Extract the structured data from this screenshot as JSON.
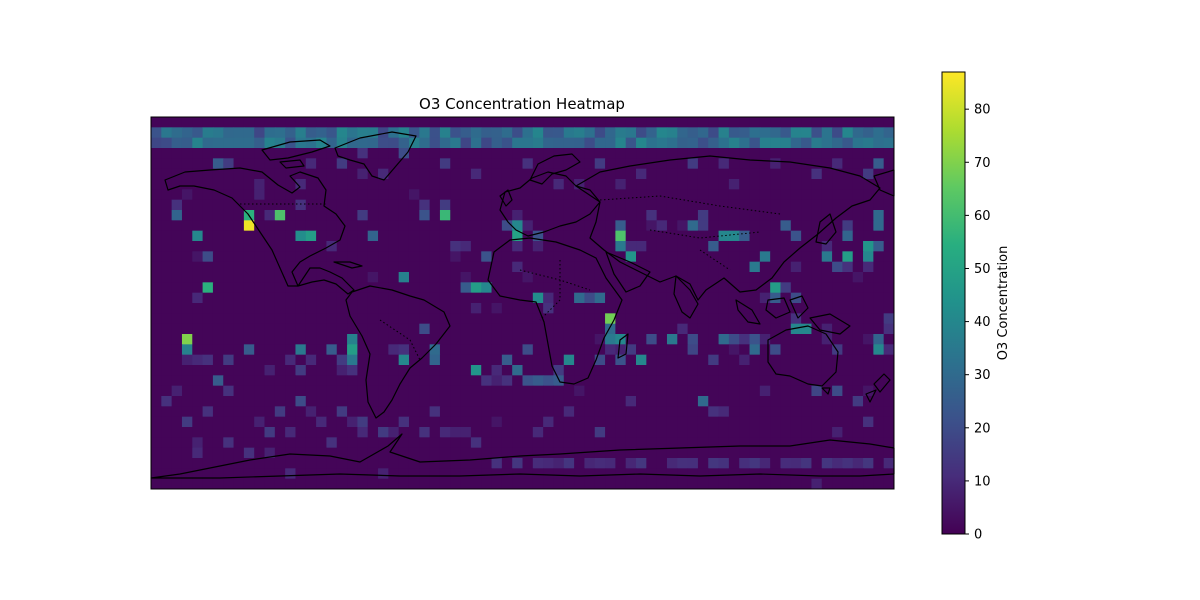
{
  "chart_data": {
    "type": "heatmap",
    "title": "O3 Concentration Heatmap",
    "colorbar": {
      "label": "O3 Concentration",
      "range": [
        0,
        87
      ],
      "ticks": [
        0,
        10,
        20,
        30,
        40,
        50,
        60,
        70,
        80
      ],
      "colormap": "viridis"
    },
    "map": {
      "projection": "plate-carree",
      "lon_range": [
        -180,
        180
      ],
      "lat_range": [
        -90,
        90
      ],
      "grid_resolution_deg": 5,
      "coastlines": true,
      "borders": "dotted"
    },
    "x": {
      "name": "longitude",
      "start": -180,
      "step": 5,
      "count": 72
    },
    "y": {
      "name": "latitude",
      "start": 90,
      "step": -5,
      "count": 36
    },
    "background_value": 1,
    "arctic_band": {
      "lat": [
        80,
        85
      ],
      "value_range": [
        18,
        40
      ]
    },
    "southern_band": {
      "lat": -75,
      "lon_range": [
        -15,
        165
      ],
      "value_range": [
        8,
        14
      ]
    },
    "cells": [
      [
        -170,
        50,
        12
      ],
      [
        -170,
        45,
        28
      ],
      [
        -165,
        55,
        5
      ],
      [
        -160,
        35,
        40
      ],
      [
        -160,
        25,
        5
      ],
      [
        -155,
        25,
        20
      ],
      [
        -155,
        10,
        55
      ],
      [
        -160,
        5,
        10
      ],
      [
        -135,
        45,
        55
      ],
      [
        -135,
        40,
        85
      ],
      [
        -130,
        55,
        8
      ],
      [
        -125,
        45,
        10
      ],
      [
        -120,
        45,
        62
      ],
      [
        -110,
        50,
        12
      ],
      [
        -110,
        35,
        42
      ],
      [
        -105,
        35,
        48
      ],
      [
        -95,
        30,
        10
      ],
      [
        -80,
        45,
        15
      ],
      [
        -75,
        35,
        28
      ],
      [
        -75,
        15,
        5
      ],
      [
        -60,
        15,
        38
      ],
      [
        -55,
        55,
        5
      ],
      [
        -50,
        50,
        12
      ],
      [
        -50,
        45,
        22
      ],
      [
        -40,
        45,
        58
      ],
      [
        -40,
        50,
        15
      ],
      [
        -35,
        30,
        12
      ],
      [
        -35,
        25,
        5
      ],
      [
        -30,
        30,
        10
      ],
      [
        -30,
        15,
        5
      ],
      [
        -30,
        10,
        25
      ],
      [
        -25,
        10,
        48
      ],
      [
        -25,
        0,
        8
      ],
      [
        -20,
        25,
        22
      ],
      [
        -20,
        10,
        40
      ],
      [
        -15,
        0,
        5
      ],
      [
        -10,
        40,
        20
      ],
      [
        -5,
        45,
        8
      ],
      [
        -5,
        40,
        40
      ],
      [
        -5,
        35,
        50
      ],
      [
        -5,
        30,
        10
      ],
      [
        0,
        40,
        8
      ],
      [
        0,
        15,
        5
      ],
      [
        5,
        30,
        8
      ],
      [
        5,
        35,
        22
      ],
      [
        5,
        5,
        42
      ],
      [
        10,
        0,
        12
      ],
      [
        10,
        5,
        10
      ],
      [
        -5,
        20,
        10
      ],
      [
        25,
        5,
        30
      ],
      [
        30,
        5,
        20
      ],
      [
        35,
        5,
        30
      ],
      [
        40,
        -5,
        68
      ],
      [
        45,
        40,
        25
      ],
      [
        45,
        35,
        62
      ],
      [
        45,
        30,
        35
      ],
      [
        50,
        30,
        10
      ],
      [
        50,
        25,
        45
      ],
      [
        55,
        30,
        10
      ],
      [
        60,
        40,
        5
      ],
      [
        60,
        45,
        12
      ],
      [
        65,
        40,
        10
      ],
      [
        75,
        40,
        5
      ],
      [
        80,
        40,
        30
      ],
      [
        85,
        45,
        15
      ],
      [
        85,
        40,
        15
      ],
      [
        90,
        30,
        25
      ],
      [
        95,
        35,
        40
      ],
      [
        100,
        35,
        40
      ],
      [
        105,
        35,
        25
      ],
      [
        110,
        20,
        35
      ],
      [
        115,
        25,
        35
      ],
      [
        120,
        10,
        48
      ],
      [
        125,
        40,
        25
      ],
      [
        130,
        35,
        22
      ],
      [
        145,
        30,
        10
      ],
      [
        145,
        25,
        35
      ],
      [
        150,
        20,
        20
      ],
      [
        155,
        40,
        15
      ],
      [
        155,
        35,
        28
      ],
      [
        155,
        25,
        48
      ],
      [
        155,
        20,
        12
      ],
      [
        160,
        15,
        5
      ],
      [
        170,
        45,
        30
      ],
      [
        170,
        40,
        30
      ],
      [
        170,
        30,
        25
      ],
      [
        165,
        30,
        45
      ],
      [
        165,
        25,
        40
      ],
      [
        165,
        20,
        10
      ],
      [
        130,
        20,
        8
      ],
      [
        125,
        10,
        15
      ],
      [
        115,
        5,
        8
      ],
      [
        120,
        5,
        25
      ],
      [
        130,
        5,
        20
      ],
      [
        130,
        -5,
        12
      ],
      [
        130,
        -10,
        40
      ],
      [
        145,
        -15,
        8
      ],
      [
        150,
        -20,
        15
      ],
      [
        165,
        -15,
        5
      ],
      [
        170,
        -15,
        28
      ],
      [
        170,
        -20,
        40
      ],
      [
        175,
        -10,
        12
      ],
      [
        175,
        -5,
        15
      ],
      [
        175,
        -20,
        10
      ],
      [
        -165,
        -20,
        38
      ],
      [
        -165,
        -15,
        70
      ],
      [
        -160,
        -25,
        10
      ],
      [
        -165,
        -25,
        8
      ],
      [
        -145,
        -25,
        15
      ],
      [
        -135,
        -20,
        25
      ],
      [
        -145,
        -40,
        12
      ],
      [
        -125,
        -30,
        8
      ],
      [
        -115,
        -25,
        10
      ],
      [
        -110,
        -20,
        35
      ],
      [
        -110,
        -30,
        15
      ],
      [
        -105,
        -25,
        10
      ],
      [
        -95,
        -20,
        25
      ],
      [
        -90,
        -25,
        15
      ],
      [
        -90,
        -30,
        8
      ],
      [
        -85,
        -20,
        48
      ],
      [
        -85,
        -15,
        38
      ],
      [
        -85,
        -25,
        35
      ],
      [
        -85,
        -30,
        12
      ],
      [
        -65,
        -20,
        10
      ],
      [
        -60,
        -20,
        12
      ],
      [
        -60,
        -25,
        40
      ],
      [
        -50,
        -10,
        20
      ],
      [
        -45,
        -20,
        30
      ],
      [
        -45,
        -25,
        28
      ],
      [
        -25,
        -30,
        45
      ],
      [
        -20,
        -35,
        12
      ],
      [
        -15,
        -30,
        10
      ],
      [
        -15,
        -35,
        8
      ],
      [
        -10,
        -25,
        25
      ],
      [
        -10,
        -35,
        12
      ],
      [
        -5,
        -30,
        30
      ],
      [
        0,
        -20,
        20
      ],
      [
        0,
        -35,
        22
      ],
      [
        5,
        -35,
        25
      ],
      [
        10,
        -35,
        22
      ],
      [
        15,
        -35,
        25
      ],
      [
        15,
        -30,
        15
      ],
      [
        20,
        -25,
        40
      ],
      [
        35,
        -25,
        20
      ],
      [
        40,
        -15,
        35
      ],
      [
        40,
        -10,
        30
      ],
      [
        35,
        -15,
        5
      ],
      [
        40,
        -20,
        10
      ],
      [
        45,
        -15,
        40
      ],
      [
        45,
        -20,
        8
      ],
      [
        45,
        -25,
        22
      ],
      [
        50,
        -20,
        15
      ],
      [
        55,
        -25,
        40
      ],
      [
        60,
        -15,
        20
      ],
      [
        70,
        -15,
        35
      ],
      [
        75,
        -10,
        10
      ],
      [
        80,
        -15,
        20
      ],
      [
        80,
        -20,
        18
      ],
      [
        90,
        -25,
        15
      ],
      [
        95,
        -15,
        30
      ],
      [
        100,
        -15,
        20
      ],
      [
        105,
        -15,
        12
      ],
      [
        100,
        -20,
        5
      ],
      [
        105,
        -25,
        8
      ],
      [
        110,
        -20,
        30
      ],
      [
        110,
        -15,
        22
      ],
      [
        115,
        -15,
        8
      ],
      [
        120,
        -20,
        20
      ],
      [
        135,
        -10,
        40
      ],
      [
        145,
        -10,
        8
      ],
      [
        -175,
        -45,
        12
      ],
      [
        -170,
        -40,
        8
      ],
      [
        -155,
        -25,
        12
      ],
      [
        -155,
        -50,
        12
      ],
      [
        -150,
        -35,
        25
      ],
      [
        -130,
        -55,
        8
      ],
      [
        -120,
        -50,
        15
      ],
      [
        -110,
        -45,
        20
      ],
      [
        -85,
        -55,
        8
      ],
      [
        -90,
        -50,
        15
      ],
      [
        -45,
        -50,
        12
      ],
      [
        -30,
        -60,
        8
      ],
      [
        -25,
        -65,
        12
      ],
      [
        -15,
        -55,
        5
      ],
      [
        5,
        -60,
        10
      ],
      [
        10,
        -55,
        10
      ],
      [
        25,
        -40,
        5
      ],
      [
        50,
        -45,
        10
      ],
      [
        85,
        -45,
        30
      ],
      [
        95,
        -50,
        10
      ],
      [
        115,
        -40,
        8
      ],
      [
        140,
        -40,
        18
      ],
      [
        150,
        -40,
        20
      ],
      [
        160,
        -45,
        15
      ],
      [
        165,
        -40,
        5
      ],
      [
        -165,
        -55,
        15
      ],
      [
        -160,
        -65,
        8
      ],
      [
        -145,
        -65,
        12
      ],
      [
        -125,
        -60,
        15
      ],
      [
        -115,
        -60,
        10
      ],
      [
        -95,
        -65,
        12
      ],
      [
        -80,
        -60,
        10
      ],
      [
        -70,
        -60,
        15
      ],
      [
        -65,
        -60,
        8
      ],
      [
        -100,
        -55,
        10
      ],
      [
        -105,
        -50,
        8
      ],
      [
        -80,
        -55,
        15
      ],
      [
        -60,
        -55,
        12
      ],
      [
        -50,
        -60,
        12
      ],
      [
        -40,
        -60,
        10
      ],
      [
        -35,
        -60,
        8
      ],
      [
        20,
        -50,
        10
      ],
      [
        35,
        -60,
        15
      ],
      [
        90,
        -50,
        12
      ],
      [
        150,
        -60,
        8
      ],
      [
        165,
        -55,
        12
      ],
      [
        -135,
        -70,
        12
      ],
      [
        -125,
        -70,
        8
      ],
      [
        40,
        -75,
        10
      ],
      [
        -150,
        70,
        25
      ],
      [
        -145,
        70,
        15
      ],
      [
        -130,
        60,
        8
      ],
      [
        -110,
        60,
        10
      ],
      [
        -80,
        75,
        12
      ],
      [
        -70,
        65,
        10
      ],
      [
        -60,
        75,
        20
      ],
      [
        -40,
        70,
        15
      ],
      [
        -25,
        65,
        10
      ],
      [
        0,
        70,
        12
      ],
      [
        15,
        60,
        10
      ],
      [
        25,
        60,
        8
      ],
      [
        35,
        70,
        15
      ],
      [
        45,
        60,
        8
      ],
      [
        55,
        65,
        10
      ],
      [
        80,
        70,
        15
      ],
      [
        95,
        70,
        10
      ],
      [
        120,
        70,
        8
      ],
      [
        140,
        65,
        12
      ],
      [
        150,
        70,
        10
      ],
      [
        165,
        65,
        15
      ],
      [
        170,
        70,
        25
      ],
      [
        -105,
        70,
        10
      ],
      [
        -90,
        70,
        15
      ],
      [
        -80,
        65,
        8
      ],
      [
        100,
        60,
        8
      ],
      [
        -115,
        -80,
        10
      ],
      [
        -70,
        -80,
        8
      ],
      [
        10,
        -75,
        10
      ],
      [
        -15,
        -75,
        12
      ],
      [
        140,
        -85,
        8
      ],
      [
        -160,
        -70,
        10
      ],
      [
        175,
        -75,
        10
      ]
    ]
  }
}
